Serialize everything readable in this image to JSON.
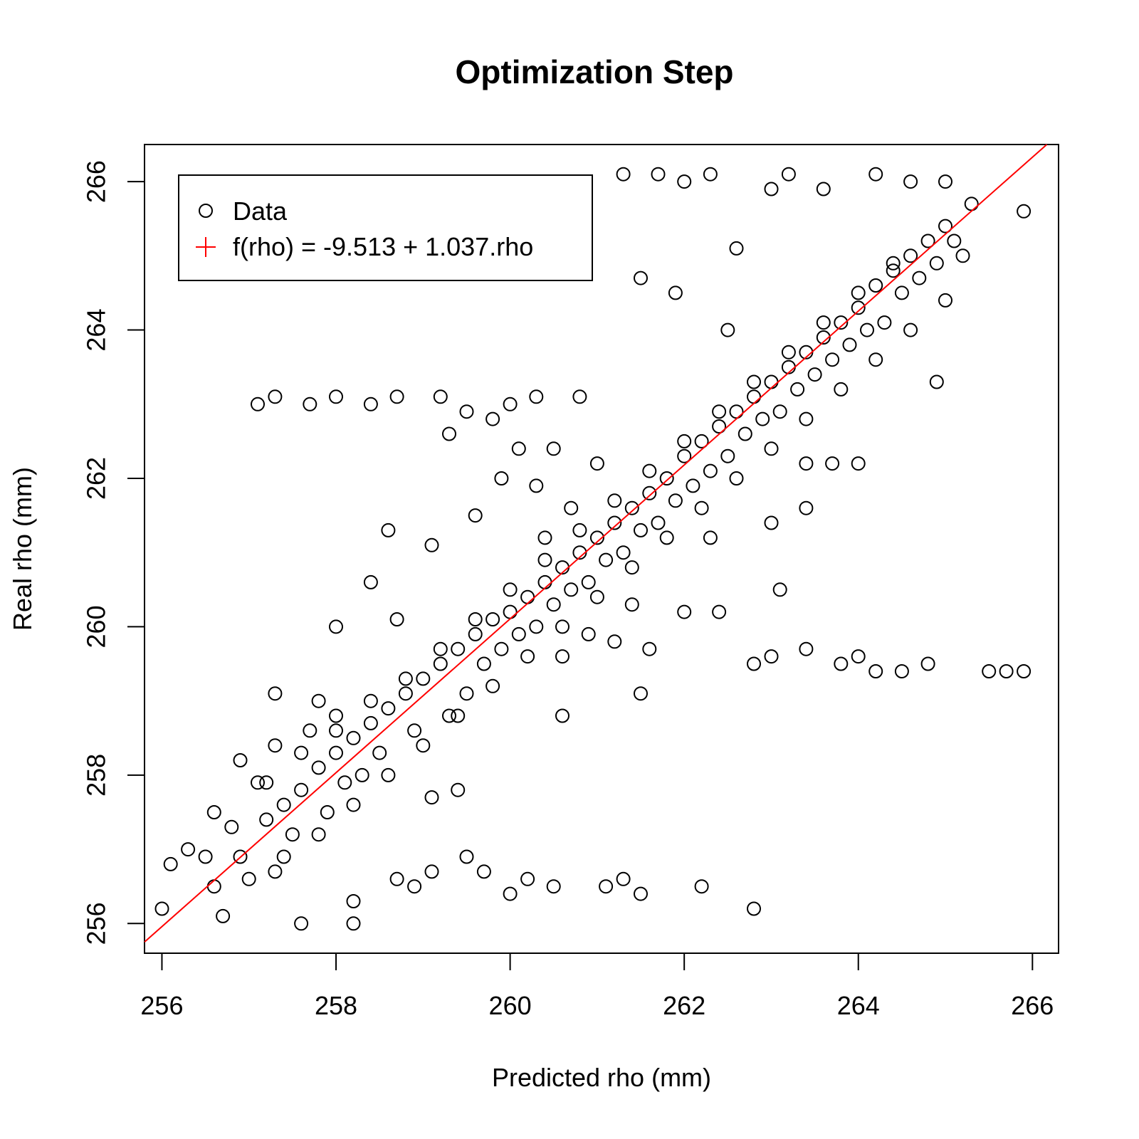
{
  "chart_data": {
    "type": "scatter",
    "title": "Optimization Step",
    "xlabel": "Predicted rho (mm)",
    "ylabel": "Real rho (mm)",
    "xlim": [
      255.8,
      266.3
    ],
    "ylim": [
      255.6,
      266.5
    ],
    "x_ticks": [
      256,
      258,
      260,
      262,
      264,
      266
    ],
    "y_ticks": [
      256,
      258,
      260,
      262,
      264,
      266
    ],
    "grid": false,
    "legend_position": "top-left",
    "legend": [
      {
        "label": "Data",
        "marker": "open-circle",
        "color": "#000000"
      },
      {
        "label": "f(rho) = -9.513 + 1.037.rho",
        "marker": "plus",
        "color": "#ff0000"
      }
    ],
    "fit_line": {
      "intercept": -9.513,
      "slope": 1.037,
      "color": "#ff0000"
    },
    "series": [
      {
        "name": "Data",
        "color": "#000000",
        "points": [
          [
            256.0,
            256.2
          ],
          [
            256.1,
            256.8
          ],
          [
            256.3,
            257.0
          ],
          [
            256.5,
            256.9
          ],
          [
            256.6,
            257.5
          ],
          [
            256.7,
            256.1
          ],
          [
            256.8,
            257.3
          ],
          [
            256.9,
            258.2
          ],
          [
            257.1,
            257.9
          ],
          [
            257.3,
            259.1
          ],
          [
            257.3,
            258.4
          ],
          [
            257.6,
            256.0
          ],
          [
            257.7,
            258.6
          ],
          [
            257.8,
            259.0
          ],
          [
            258.0,
            258.8
          ],
          [
            258.2,
            256.3
          ],
          [
            258.2,
            256.0
          ],
          [
            258.7,
            256.6
          ],
          [
            258.9,
            256.5
          ],
          [
            259.1,
            256.7
          ],
          [
            259.5,
            256.9
          ],
          [
            259.7,
            256.7
          ],
          [
            260.0,
            256.4
          ],
          [
            260.2,
            256.6
          ],
          [
            260.5,
            256.5
          ],
          [
            261.1,
            256.5
          ],
          [
            261.3,
            256.6
          ],
          [
            261.5,
            256.4
          ],
          [
            262.2,
            256.5
          ],
          [
            262.8,
            256.2
          ],
          [
            257.1,
            263.0
          ],
          [
            257.3,
            263.1
          ],
          [
            257.7,
            263.0
          ],
          [
            258.0,
            263.1
          ],
          [
            258.4,
            263.0
          ],
          [
            258.7,
            263.1
          ],
          [
            259.2,
            263.1
          ],
          [
            259.5,
            262.9
          ],
          [
            260.0,
            263.0
          ],
          [
            260.3,
            263.1
          ],
          [
            260.8,
            263.1
          ],
          [
            261.3,
            266.1
          ],
          [
            261.7,
            266.1
          ],
          [
            262.0,
            266.0
          ],
          [
            262.3,
            266.1
          ],
          [
            262.6,
            265.1
          ],
          [
            263.0,
            265.9
          ],
          [
            263.2,
            266.1
          ],
          [
            263.6,
            265.9
          ],
          [
            264.2,
            266.1
          ],
          [
            264.6,
            266.0
          ],
          [
            265.0,
            266.0
          ],
          [
            265.3,
            265.7
          ],
          [
            265.9,
            265.6
          ],
          [
            262.8,
            259.5
          ],
          [
            263.0,
            259.6
          ],
          [
            263.4,
            259.7
          ],
          [
            263.8,
            259.5
          ],
          [
            264.0,
            259.6
          ],
          [
            264.2,
            259.4
          ],
          [
            264.5,
            259.4
          ],
          [
            264.8,
            259.5
          ],
          [
            265.5,
            259.4
          ],
          [
            265.7,
            259.4
          ],
          [
            265.9,
            259.4
          ],
          [
            261.5,
            264.7
          ],
          [
            261.9,
            264.5
          ],
          [
            262.5,
            264.0
          ],
          [
            263.7,
            262.2
          ],
          [
            264.0,
            262.2
          ],
          [
            264.9,
            263.3
          ],
          [
            265.0,
            264.4
          ],
          [
            259.6,
            261.5
          ],
          [
            259.1,
            261.1
          ],
          [
            258.6,
            261.3
          ],
          [
            258.4,
            260.6
          ],
          [
            258.7,
            260.1
          ],
          [
            258.0,
            260.0
          ],
          [
            259.4,
            257.8
          ],
          [
            259.1,
            257.7
          ],
          [
            260.6,
            258.8
          ],
          [
            261.5,
            259.1
          ],
          [
            262.0,
            260.2
          ],
          [
            263.1,
            260.5
          ],
          [
            263.0,
            261.4
          ],
          [
            263.4,
            261.6
          ],
          [
            263.4,
            262.2
          ],
          [
            262.4,
            260.2
          ],
          [
            262.3,
            261.2
          ],
          [
            256.6,
            256.5
          ],
          [
            256.9,
            256.9
          ],
          [
            257.2,
            257.4
          ],
          [
            257.4,
            257.6
          ],
          [
            257.6,
            257.8
          ],
          [
            257.8,
            258.1
          ],
          [
            258.0,
            258.3
          ],
          [
            258.2,
            258.5
          ],
          [
            258.4,
            258.7
          ],
          [
            258.6,
            258.9
          ],
          [
            258.8,
            259.1
          ],
          [
            259.0,
            259.3
          ],
          [
            259.2,
            259.5
          ],
          [
            259.4,
            259.7
          ],
          [
            259.6,
            259.9
          ],
          [
            259.8,
            260.1
          ],
          [
            260.0,
            260.2
          ],
          [
            260.2,
            260.4
          ],
          [
            260.4,
            260.6
          ],
          [
            260.6,
            260.8
          ],
          [
            260.8,
            261.0
          ],
          [
            261.0,
            261.2
          ],
          [
            261.2,
            261.4
          ],
          [
            261.4,
            261.6
          ],
          [
            261.6,
            261.8
          ],
          [
            261.8,
            262.0
          ],
          [
            262.0,
            262.3
          ],
          [
            262.2,
            262.5
          ],
          [
            262.4,
            262.7
          ],
          [
            262.6,
            262.9
          ],
          [
            262.8,
            263.1
          ],
          [
            263.0,
            263.3
          ],
          [
            263.2,
            263.5
          ],
          [
            263.4,
            263.7
          ],
          [
            263.6,
            263.9
          ],
          [
            263.8,
            264.1
          ],
          [
            264.0,
            264.3
          ],
          [
            264.2,
            264.6
          ],
          [
            264.4,
            264.8
          ],
          [
            264.6,
            265.0
          ],
          [
            264.8,
            265.2
          ],
          [
            265.0,
            265.4
          ],
          [
            265.2,
            265.0
          ],
          [
            257.0,
            256.6
          ],
          [
            257.3,
            256.7
          ],
          [
            257.5,
            257.2
          ],
          [
            257.9,
            257.5
          ],
          [
            258.1,
            257.9
          ],
          [
            258.3,
            258.0
          ],
          [
            258.5,
            258.3
          ],
          [
            258.9,
            258.6
          ],
          [
            259.3,
            258.8
          ],
          [
            259.5,
            259.1
          ],
          [
            259.7,
            259.5
          ],
          [
            259.9,
            259.7
          ],
          [
            260.1,
            259.9
          ],
          [
            260.3,
            260.0
          ],
          [
            260.5,
            260.3
          ],
          [
            260.7,
            260.5
          ],
          [
            260.9,
            260.6
          ],
          [
            261.1,
            260.9
          ],
          [
            261.3,
            261.0
          ],
          [
            261.5,
            261.3
          ],
          [
            261.7,
            261.4
          ],
          [
            261.9,
            261.7
          ],
          [
            262.1,
            261.9
          ],
          [
            262.3,
            262.1
          ],
          [
            262.5,
            262.3
          ],
          [
            262.7,
            262.6
          ],
          [
            262.9,
            262.8
          ],
          [
            263.1,
            262.9
          ],
          [
            263.3,
            263.2
          ],
          [
            263.5,
            263.4
          ],
          [
            263.7,
            263.6
          ],
          [
            263.9,
            263.8
          ],
          [
            264.1,
            264.0
          ],
          [
            264.3,
            264.1
          ],
          [
            264.5,
            264.5
          ],
          [
            264.7,
            264.7
          ],
          [
            264.9,
            264.9
          ],
          [
            265.1,
            265.2
          ],
          [
            257.2,
            257.9
          ],
          [
            257.6,
            258.3
          ],
          [
            258.0,
            258.6
          ],
          [
            258.4,
            259.0
          ],
          [
            258.8,
            259.3
          ],
          [
            259.2,
            259.7
          ],
          [
            259.6,
            260.1
          ],
          [
            260.0,
            260.5
          ],
          [
            260.4,
            260.9
          ],
          [
            260.8,
            261.3
          ],
          [
            261.2,
            261.7
          ],
          [
            261.6,
            262.1
          ],
          [
            262.0,
            262.5
          ],
          [
            262.4,
            262.9
          ],
          [
            262.8,
            263.3
          ],
          [
            263.2,
            263.7
          ],
          [
            263.6,
            264.1
          ],
          [
            264.0,
            264.5
          ],
          [
            264.4,
            264.9
          ],
          [
            257.4,
            256.9
          ],
          [
            257.8,
            257.2
          ],
          [
            258.2,
            257.6
          ],
          [
            258.6,
            258.0
          ],
          [
            259.0,
            258.4
          ],
          [
            259.4,
            258.8
          ],
          [
            259.8,
            259.2
          ],
          [
            260.2,
            259.6
          ],
          [
            260.6,
            260.0
          ],
          [
            261.0,
            260.4
          ],
          [
            261.4,
            260.8
          ],
          [
            261.8,
            261.2
          ],
          [
            262.2,
            261.6
          ],
          [
            262.6,
            262.0
          ],
          [
            263.0,
            262.4
          ],
          [
            263.4,
            262.8
          ],
          [
            263.8,
            263.2
          ],
          [
            264.2,
            263.6
          ],
          [
            264.6,
            264.0
          ],
          [
            260.3,
            261.9
          ],
          [
            260.5,
            262.4
          ],
          [
            260.7,
            261.6
          ],
          [
            260.4,
            261.2
          ],
          [
            261.0,
            262.2
          ],
          [
            260.6,
            259.6
          ],
          [
            261.2,
            259.8
          ],
          [
            261.6,
            259.7
          ],
          [
            261.4,
            260.3
          ],
          [
            260.9,
            259.9
          ],
          [
            259.3,
            262.6
          ],
          [
            259.8,
            262.8
          ],
          [
            260.1,
            262.4
          ],
          [
            259.9,
            262.0
          ]
        ]
      }
    ]
  }
}
